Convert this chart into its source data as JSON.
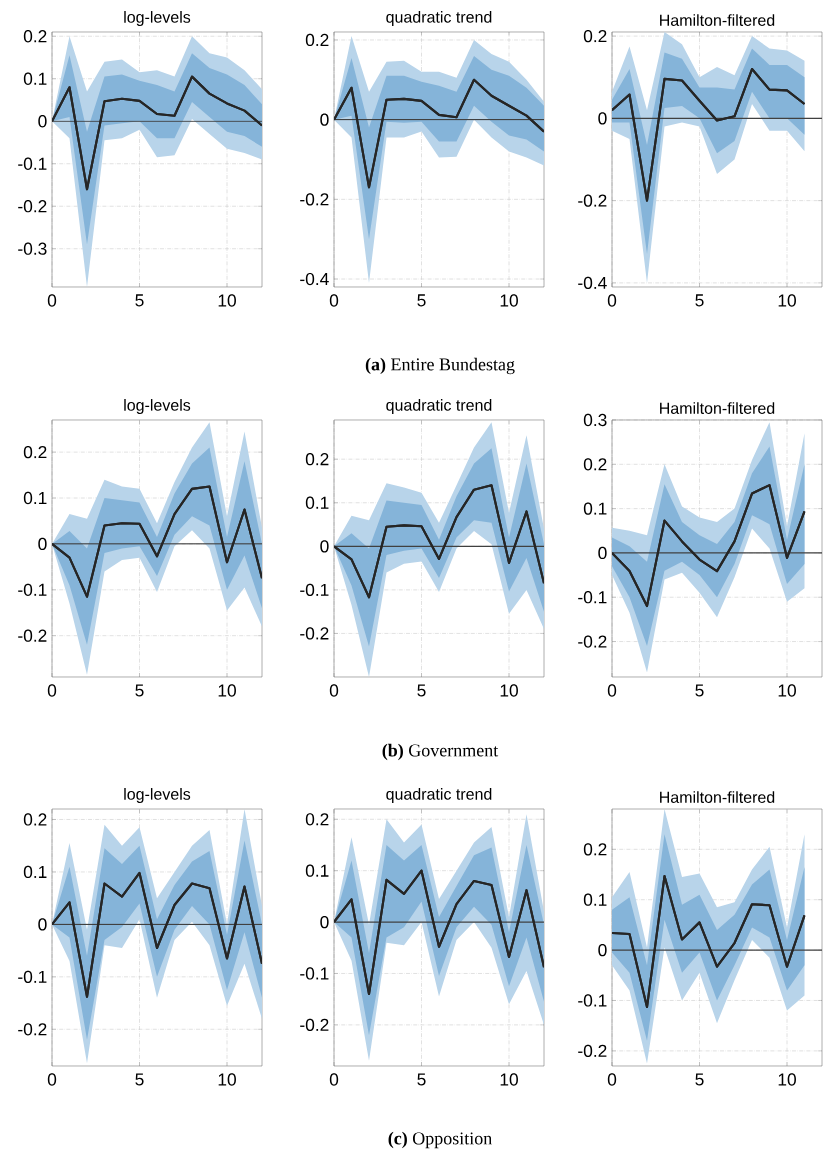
{
  "chart_data": [
    {
      "type": "line",
      "title": "log-levels",
      "annotations": [
        "**(a)** Entire Bundestag"
      ],
      "x": [
        0,
        1,
        2,
        3,
        4,
        5,
        6,
        7,
        8,
        9,
        10,
        11,
        12
      ],
      "xlim": [
        0,
        12
      ],
      "xticks": [
        0,
        5,
        10
      ],
      "ylim": [
        -0.39,
        0.21
      ],
      "yticks": [
        -0.3,
        -0.2,
        -0.1,
        0,
        0.1,
        0.2
      ],
      "grid": true,
      "ref_lines": [
        {
          "axis": "y",
          "value": 0,
          "color": "#404040"
        }
      ],
      "series": [
        {
          "color": "#262626",
          "values": [
            0,
            0.08,
            -0.16,
            0.047,
            0.053,
            0.048,
            0.017,
            0.013,
            0.105,
            0.065,
            0.042,
            0.025,
            -0.01
          ],
          "lower": [
            0,
            -0.04,
            -0.39,
            -0.045,
            -0.04,
            -0.02,
            -0.085,
            -0.08,
            0.005,
            -0.03,
            -0.065,
            -0.075,
            -0.09
          ],
          "upper": [
            0,
            0.2,
            0.07,
            0.14,
            0.145,
            0.115,
            0.12,
            0.105,
            0.2,
            0.16,
            0.15,
            0.12,
            0.075
          ]
        },
        {
          "color": "#262626",
          "values": [
            0,
            0.08,
            -0.16,
            0.047,
            0.053,
            0.048,
            0.017,
            0.013,
            0.105,
            0.065,
            0.042,
            0.025,
            -0.01
          ],
          "lower": [
            0,
            0.01,
            -0.29,
            -0.01,
            -0.005,
            0,
            -0.04,
            -0.04,
            0.045,
            0.01,
            -0.025,
            -0.035,
            -0.06
          ],
          "upper": [
            0,
            0.155,
            -0.025,
            0.105,
            0.11,
            0.095,
            0.085,
            0.07,
            0.16,
            0.125,
            0.11,
            0.085,
            0.04
          ]
        }
      ]
    },
    {
      "type": "line",
      "title": "quadratic trend",
      "x": [
        0,
        1,
        2,
        3,
        4,
        5,
        6,
        7,
        8,
        9,
        10,
        11,
        12
      ],
      "xlim": [
        0,
        12
      ],
      "xticks": [
        0,
        5,
        10
      ],
      "ylim": [
        -0.42,
        0.22
      ],
      "yticks": [
        -0.4,
        -0.2,
        0,
        0.2
      ],
      "grid": true,
      "ref_lines": [
        {
          "axis": "y",
          "value": 0,
          "color": "#404040"
        }
      ],
      "series": [
        {
          "color": "#262626",
          "values": [
            0,
            0.08,
            -0.17,
            0.05,
            0.052,
            0.047,
            0.012,
            0.006,
            0.1,
            0.06,
            0.035,
            0.01,
            -0.03
          ],
          "lower": [
            0,
            -0.045,
            -0.41,
            -0.045,
            -0.045,
            -0.03,
            -0.095,
            -0.093,
            0,
            -0.045,
            -0.08,
            -0.095,
            -0.115
          ],
          "upper": [
            0,
            0.21,
            0.07,
            0.145,
            0.148,
            0.12,
            0.12,
            0.105,
            0.2,
            0.165,
            0.145,
            0.1,
            0.045
          ]
        },
        {
          "color": "#262626",
          "values": [
            0,
            0.08,
            -0.17,
            0.05,
            0.052,
            0.047,
            0.012,
            0.006,
            0.1,
            0.06,
            0.035,
            0.01,
            -0.03
          ],
          "lower": [
            0,
            0.01,
            -0.3,
            -0.005,
            -0.008,
            -0.005,
            -0.055,
            -0.055,
            0.035,
            -0.005,
            -0.04,
            -0.05,
            -0.08
          ],
          "upper": [
            0,
            0.155,
            -0.02,
            0.11,
            0.11,
            0.095,
            0.085,
            0.07,
            0.16,
            0.125,
            0.11,
            0.08,
            0.035
          ]
        }
      ]
    },
    {
      "type": "line",
      "title": "Hamilton-filtered",
      "x": [
        0,
        1,
        2,
        3,
        4,
        5,
        6,
        7,
        8,
        9,
        10,
        11
      ],
      "xlim": [
        0,
        12
      ],
      "xticks": [
        0,
        5,
        10
      ],
      "ylim": [
        -0.41,
        0.21
      ],
      "yticks": [
        -0.4,
        -0.2,
        0,
        0.2
      ],
      "grid": true,
      "ref_lines": [
        {
          "axis": "y",
          "value": 0,
          "color": "#404040"
        }
      ],
      "series": [
        {
          "color": "#262626",
          "values": [
            0.02,
            0.058,
            -0.2,
            0.096,
            0.092,
            0.043,
            -0.005,
            0.005,
            0.12,
            0.07,
            0.068,
            0.035
          ],
          "lower": [
            -0.03,
            -0.05,
            -0.4,
            -0.02,
            -0.01,
            -0.02,
            -0.135,
            -0.1,
            0.035,
            -0.03,
            -0.03,
            -0.08
          ],
          "upper": [
            0.065,
            0.175,
            0.02,
            0.21,
            0.18,
            0.1,
            0.125,
            0.105,
            0.2,
            0.17,
            0.165,
            0.14
          ]
        },
        {
          "color": "#262626",
          "values": [
            0.02,
            0.058,
            -0.2,
            0.096,
            0.092,
            0.043,
            -0.005,
            0.005,
            0.12,
            0.07,
            0.068,
            0.035
          ],
          "lower": [
            -0.01,
            -0.01,
            -0.33,
            0.025,
            0.03,
            0,
            -0.085,
            -0.055,
            0.065,
            0,
            0,
            -0.04
          ],
          "upper": [
            0.045,
            0.12,
            -0.065,
            0.16,
            0.145,
            0.075,
            0.075,
            0.07,
            0.17,
            0.13,
            0.13,
            0.1
          ]
        }
      ]
    },
    {
      "type": "line",
      "title": "log-levels",
      "annotations": [
        "**(b)** Government"
      ],
      "x": [
        0,
        1,
        2,
        3,
        4,
        5,
        6,
        7,
        8,
        9,
        10,
        11,
        12
      ],
      "xlim": [
        0,
        12
      ],
      "xticks": [
        0,
        5,
        10
      ],
      "ylim": [
        -0.29,
        0.27
      ],
      "yticks": [
        -0.2,
        -0.1,
        0,
        0.1,
        0.2
      ],
      "grid": true,
      "ref_lines": [
        {
          "axis": "y",
          "value": 0,
          "color": "#404040"
        }
      ],
      "series": [
        {
          "color": "#262626",
          "values": [
            0,
            -0.03,
            -0.115,
            0.04,
            0.045,
            0.044,
            -0.027,
            0.065,
            0.12,
            0.125,
            -0.04,
            0.075,
            -0.075
          ],
          "lower": [
            0,
            -0.13,
            -0.285,
            -0.06,
            -0.035,
            -0.03,
            -0.105,
            -0.005,
            0.03,
            -0.01,
            -0.145,
            -0.095,
            -0.18
          ],
          "upper": [
            0,
            0.065,
            0.055,
            0.14,
            0.125,
            0.12,
            0.045,
            0.135,
            0.21,
            0.265,
            0.06,
            0.245,
            0.035
          ]
        },
        {
          "color": "#262626",
          "values": [
            0,
            -0.03,
            -0.115,
            0.04,
            0.045,
            0.044,
            -0.027,
            0.065,
            0.12,
            0.125,
            -0.04,
            0.075,
            -0.075
          ],
          "lower": [
            0,
            -0.09,
            -0.22,
            -0.02,
            -0.01,
            -0.005,
            -0.07,
            0.02,
            0.06,
            0.04,
            -0.1,
            -0.025,
            -0.14
          ],
          "upper": [
            0,
            0.028,
            -0.01,
            0.1,
            0.095,
            0.09,
            0.015,
            0.11,
            0.175,
            0.21,
            0.015,
            0.18,
            0
          ]
        }
      ]
    },
    {
      "type": "line",
      "title": "quadratic trend",
      "x": [
        0,
        1,
        2,
        3,
        4,
        5,
        6,
        7,
        8,
        9,
        10,
        11,
        12
      ],
      "xlim": [
        0,
        12
      ],
      "xticks": [
        0,
        5,
        10
      ],
      "ylim": [
        -0.3,
        0.29
      ],
      "yticks": [
        -0.2,
        -0.1,
        0,
        0.1,
        0.2
      ],
      "grid": true,
      "ref_lines": [
        {
          "axis": "y",
          "value": 0,
          "color": "#404040"
        }
      ],
      "series": [
        {
          "color": "#262626",
          "values": [
            0,
            -0.03,
            -0.117,
            0.045,
            0.048,
            0.046,
            -0.029,
            0.067,
            0.13,
            0.14,
            -0.038,
            0.08,
            -0.085
          ],
          "lower": [
            0,
            -0.135,
            -0.3,
            -0.06,
            -0.04,
            -0.035,
            -0.105,
            -0.005,
            0.035,
            0.005,
            -0.155,
            -0.1,
            -0.19
          ],
          "upper": [
            0,
            0.07,
            0.06,
            0.145,
            0.135,
            0.123,
            0.054,
            0.14,
            0.227,
            0.285,
            0.077,
            0.255,
            0.04
          ]
        },
        {
          "color": "#262626",
          "values": [
            0,
            -0.03,
            -0.117,
            0.045,
            0.048,
            0.046,
            -0.029,
            0.067,
            0.13,
            0.14,
            -0.038,
            0.08,
            -0.085
          ],
          "lower": [
            0,
            -0.09,
            -0.23,
            -0.02,
            -0.01,
            -0.005,
            -0.073,
            0.02,
            0.06,
            0.054,
            -0.104,
            -0.027,
            -0.15
          ],
          "upper": [
            0,
            0.03,
            -0.005,
            0.105,
            0.1,
            0.095,
            0.015,
            0.115,
            0.19,
            0.225,
            0.02,
            0.19,
            0.005
          ]
        }
      ]
    },
    {
      "type": "line",
      "title": "Hamilton-filtered",
      "x": [
        0,
        1,
        2,
        3,
        4,
        5,
        6,
        7,
        8,
        9,
        10,
        11
      ],
      "xlim": [
        0,
        12
      ],
      "xticks": [
        0,
        5,
        10
      ],
      "ylim": [
        -0.28,
        0.3
      ],
      "yticks": [
        -0.2,
        -0.1,
        0,
        0.1,
        0.2,
        0.3
      ],
      "grid": true,
      "ref_lines": [
        {
          "axis": "y",
          "value": 0,
          "color": "#404040"
        }
      ],
      "series": [
        {
          "color": "#262626",
          "values": [
            0,
            -0.041,
            -0.12,
            0.073,
            0.026,
            -0.015,
            -0.041,
            0.026,
            0.134,
            0.153,
            -0.011,
            0.094
          ],
          "lower": [
            -0.05,
            -0.135,
            -0.27,
            -0.06,
            -0.045,
            -0.09,
            -0.145,
            -0.055,
            0.055,
            0.01,
            -0.11,
            -0.08
          ],
          "upper": [
            0.057,
            0.05,
            0.04,
            0.2,
            0.105,
            0.08,
            0.07,
            0.1,
            0.21,
            0.295,
            0.06,
            0.27
          ]
        },
        {
          "color": "#262626",
          "values": [
            0,
            -0.041,
            -0.12,
            0.073,
            0.026,
            -0.015,
            -0.041,
            0.026,
            0.134,
            0.153,
            -0.011,
            0.094
          ],
          "lower": [
            -0.03,
            -0.1,
            -0.21,
            -0.04,
            -0.02,
            -0.05,
            -0.1,
            -0.025,
            0.085,
            0.065,
            -0.07,
            -0.025
          ],
          "upper": [
            0.035,
            0.015,
            -0.02,
            0.155,
            0.07,
            0.04,
            0.02,
            0.07,
            0.18,
            0.24,
            0.03,
            0.2
          ]
        }
      ]
    },
    {
      "type": "line",
      "title": "log-levels",
      "annotations": [
        "**(c)** Opposition"
      ],
      "x": [
        0,
        1,
        2,
        3,
        4,
        5,
        6,
        7,
        8,
        9,
        10,
        11,
        12
      ],
      "xlim": [
        0,
        12
      ],
      "xticks": [
        0,
        5,
        10
      ],
      "ylim": [
        -0.27,
        0.22
      ],
      "yticks": [
        -0.2,
        -0.1,
        0,
        0.1,
        0.2
      ],
      "grid": true,
      "ref_lines": [
        {
          "axis": "y",
          "value": 0,
          "color": "#404040"
        }
      ],
      "series": [
        {
          "color": "#262626",
          "values": [
            0,
            0.042,
            -0.138,
            0.078,
            0.053,
            0.098,
            -0.045,
            0.037,
            0.078,
            0.069,
            -0.065,
            0.072,
            -0.075
          ],
          "lower": [
            0,
            -0.07,
            -0.265,
            -0.04,
            -0.045,
            0.01,
            -0.14,
            -0.03,
            0.005,
            -0.04,
            -0.155,
            -0.075,
            -0.18
          ],
          "upper": [
            0,
            0.155,
            -0.01,
            0.19,
            0.15,
            0.185,
            0.05,
            0.1,
            0.15,
            0.18,
            0,
            0.22,
            0.035
          ]
        },
        {
          "color": "#262626",
          "values": [
            0,
            0.042,
            -0.138,
            0.078,
            0.053,
            0.098,
            -0.045,
            0.037,
            0.078,
            0.069,
            -0.065,
            0.072,
            -0.075
          ],
          "lower": [
            0,
            -0.025,
            -0.22,
            -0.03,
            -0.005,
            0.04,
            -0.1,
            -0.01,
            0.035,
            0,
            -0.125,
            -0.015,
            -0.14
          ],
          "upper": [
            0,
            0.11,
            -0.06,
            0.145,
            0.115,
            0.15,
            0.01,
            0.075,
            0.12,
            0.14,
            -0.02,
            0.16,
            0
          ]
        }
      ]
    },
    {
      "type": "line",
      "title": "quadratic trend",
      "x": [
        0,
        1,
        2,
        3,
        4,
        5,
        6,
        7,
        8,
        9,
        10,
        11,
        12
      ],
      "xlim": [
        0,
        12
      ],
      "xticks": [
        0,
        5,
        10
      ],
      "ylim": [
        -0.28,
        0.22
      ],
      "yticks": [
        -0.2,
        -0.1,
        0,
        0.1,
        0.2
      ],
      "grid": true,
      "ref_lines": [
        {
          "axis": "y",
          "value": 0,
          "color": "#404040"
        }
      ],
      "series": [
        {
          "color": "#262626",
          "values": [
            0,
            0.044,
            -0.14,
            0.082,
            0.055,
            0.1,
            -0.048,
            0.035,
            0.08,
            0.072,
            -0.068,
            0.062,
            -0.088
          ],
          "lower": [
            0,
            -0.075,
            -0.27,
            -0.04,
            -0.045,
            0,
            -0.145,
            -0.035,
            0,
            -0.05,
            -0.16,
            -0.095,
            -0.2
          ],
          "upper": [
            0,
            0.165,
            -0.005,
            0.2,
            0.155,
            0.19,
            0.045,
            0.1,
            0.155,
            0.185,
            0.01,
            0.21,
            0.02
          ]
        },
        {
          "color": "#262626",
          "values": [
            0,
            0.044,
            -0.14,
            0.082,
            0.055,
            0.1,
            -0.048,
            0.035,
            0.08,
            0.072,
            -0.068,
            0.062,
            -0.088
          ],
          "lower": [
            0,
            -0.03,
            -0.22,
            -0.03,
            -0.01,
            0.04,
            -0.105,
            -0.01,
            0.03,
            -0.005,
            -0.125,
            -0.03,
            -0.155
          ],
          "upper": [
            0,
            0.12,
            -0.06,
            0.15,
            0.12,
            0.15,
            0.01,
            0.07,
            0.13,
            0.145,
            -0.02,
            0.15,
            -0.005
          ]
        }
      ]
    },
    {
      "type": "line",
      "title": "Hamilton-filtered",
      "x": [
        0,
        1,
        2,
        3,
        4,
        5,
        6,
        7,
        8,
        9,
        10,
        11
      ],
      "xlim": [
        0,
        12
      ],
      "xticks": [
        0,
        5,
        10
      ],
      "ylim": [
        -0.23,
        0.28
      ],
      "yticks": [
        -0.2,
        -0.1,
        0,
        0.1,
        0.2
      ],
      "grid": true,
      "ref_lines": [
        {
          "axis": "y",
          "value": 0,
          "color": "#404040"
        }
      ],
      "series": [
        {
          "color": "#262626",
          "values": [
            0.034,
            0.032,
            -0.113,
            0.147,
            0.021,
            0.055,
            -0.033,
            0.014,
            0.091,
            0.089,
            -0.033,
            0.069
          ],
          "lower": [
            -0.03,
            -0.08,
            -0.225,
            0.005,
            -0.1,
            -0.045,
            -0.145,
            -0.06,
            0.02,
            -0.015,
            -0.12,
            -0.09
          ],
          "upper": [
            0.105,
            0.155,
            0.005,
            0.28,
            0.145,
            0.152,
            0.085,
            0.095,
            0.16,
            0.205,
            0.045,
            0.23
          ]
        },
        {
          "color": "#262626",
          "values": [
            0.034,
            0.032,
            -0.113,
            0.147,
            0.021,
            0.055,
            -0.033,
            0.014,
            0.091,
            0.089,
            -0.033,
            0.069
          ],
          "lower": [
            -0.005,
            -0.045,
            -0.18,
            0.06,
            -0.045,
            -0.005,
            -0.1,
            -0.03,
            0.045,
            0.025,
            -0.08,
            -0.03
          ],
          "upper": [
            0.08,
            0.105,
            -0.03,
            0.23,
            0.09,
            0.11,
            0.04,
            0.07,
            0.13,
            0.16,
            0.02,
            0.165
          ]
        }
      ]
    }
  ]
}
